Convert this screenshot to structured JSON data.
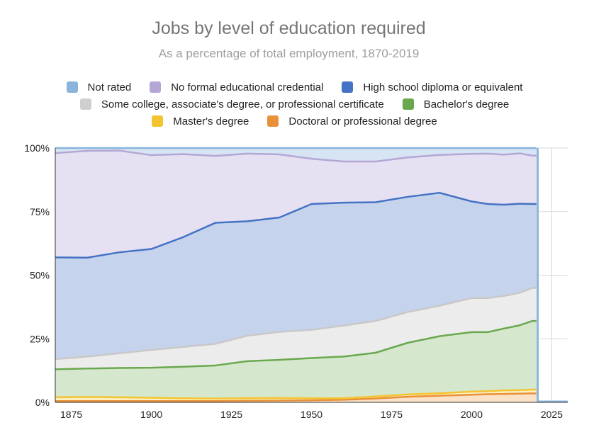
{
  "chart_data": {
    "type": "area",
    "stacked": true,
    "title": "Jobs by level of education required",
    "subtitle": "As a percentage of total employment, 1870-2019",
    "xlabel": "",
    "ylabel": "",
    "xlim": [
      1870,
      2030
    ],
    "ylim": [
      0,
      100
    ],
    "x_ticks": [
      1875,
      1900,
      1925,
      1950,
      1975,
      2000,
      2025
    ],
    "y_ticks": [
      0,
      25,
      50,
      75,
      100
    ],
    "y_tick_labels": [
      "0%",
      "25%",
      "50%",
      "75%",
      "100%"
    ],
    "grid": true,
    "legend_position": "top",
    "legend_rows": [
      [
        "Not rated",
        "No formal educational credential",
        "High school diploma or equivalent"
      ],
      [
        "Some college, associate's degree, or professional certificate",
        "Bachelor's degree"
      ],
      [
        "Master's degree",
        "Doctoral or professional degree"
      ]
    ],
    "x": [
      1870,
      1880,
      1890,
      1900,
      1910,
      1920,
      1930,
      1940,
      1950,
      1960,
      1970,
      1980,
      1990,
      2000,
      2005,
      2010,
      2015,
      2019
    ],
    "series": [
      {
        "name": "Doctoral or professional degree",
        "color": "#e8903a",
        "fill": "#fbe1c6",
        "values": [
          0.5,
          0.5,
          0.5,
          0.5,
          0.5,
          0.5,
          0.6,
          0.7,
          0.8,
          1.0,
          1.5,
          2.2,
          2.6,
          3.0,
          3.2,
          3.3,
          3.4,
          3.5
        ]
      },
      {
        "name": "Master's degree",
        "color": "#f4c430",
        "fill": "#fdf0c0",
        "values": [
          1.5,
          1.6,
          1.5,
          1.3,
          1.1,
          1.0,
          1.0,
          1.0,
          0.8,
          0.6,
          0.8,
          0.9,
          1.0,
          1.2,
          1.2,
          1.4,
          1.4,
          1.5
        ]
      },
      {
        "name": "Bachelor's degree",
        "color": "#6aa84f",
        "fill": "#d5e8cd",
        "values": [
          11.0,
          11.2,
          11.5,
          11.8,
          12.4,
          13.0,
          14.6,
          15.0,
          15.8,
          16.4,
          17.2,
          20.3,
          22.4,
          23.4,
          23.2,
          24.3,
          25.5,
          27.0
        ]
      },
      {
        "name": "Some college, associate's degree, or professional certificate",
        "color": "#c8c8c8",
        "fill": "#ececec",
        "values": [
          4.0,
          4.7,
          5.8,
          7.0,
          7.8,
          8.5,
          10.0,
          11.0,
          11.1,
          12.2,
          12.5,
          12.1,
          12.0,
          13.4,
          13.4,
          12.8,
          12.8,
          13.0
        ]
      },
      {
        "name": "High school diploma or equivalent",
        "color": "#4472c4",
        "fill": "#c6d3ec",
        "values": [
          40.0,
          38.9,
          39.7,
          39.7,
          43.2,
          47.6,
          45.0,
          45.0,
          49.5,
          48.3,
          46.7,
          45.3,
          44.4,
          38.0,
          37.0,
          35.9,
          35.0,
          33.0
        ]
      },
      {
        "name": "No formal educational credential",
        "color": "#b4a7d6",
        "fill": "#e6e1f2",
        "values": [
          41.0,
          42.0,
          40.0,
          36.9,
          32.6,
          26.3,
          26.6,
          24.8,
          17.8,
          16.2,
          16.0,
          15.5,
          14.9,
          18.7,
          19.8,
          19.7,
          19.8,
          19.0
        ]
      },
      {
        "name": "Not rated",
        "color": "#8ab4dc",
        "fill": "#d6e4f3",
        "values": [
          2.0,
          1.1,
          1.0,
          2.8,
          2.4,
          3.1,
          2.2,
          2.5,
          4.2,
          5.3,
          5.3,
          3.7,
          2.7,
          2.3,
          2.2,
          2.6,
          2.1,
          3.0
        ]
      }
    ]
  }
}
